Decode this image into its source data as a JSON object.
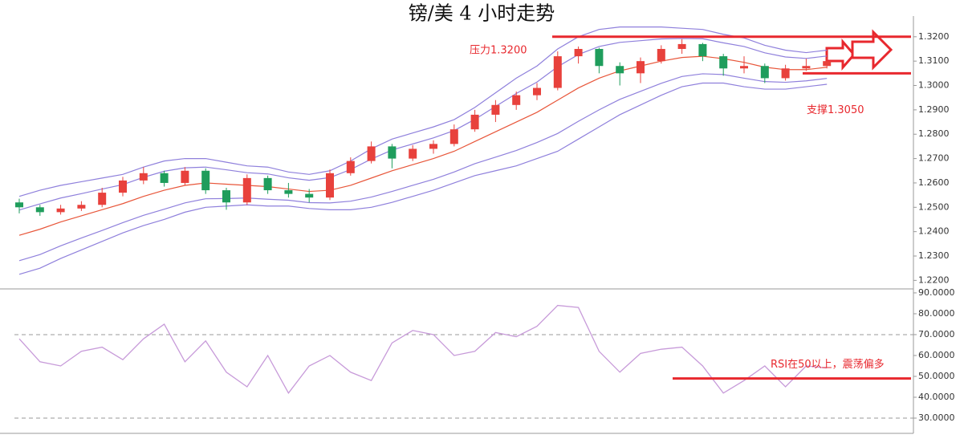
{
  "chart_data": [
    {
      "type": "candlestick",
      "title": "镑/美 4 小时走势",
      "ylim": [
        1.2165,
        1.3285
      ],
      "yticks": [
        {
          "value": 1.22,
          "label": "1.2200"
        },
        {
          "value": 1.23,
          "label": "1.2300"
        },
        {
          "value": 1.24,
          "label": "1.2400"
        },
        {
          "value": 1.25,
          "label": "1.2500"
        },
        {
          "value": 1.26,
          "label": "1.2600"
        },
        {
          "value": 1.27,
          "label": "1.2700"
        },
        {
          "value": 1.28,
          "label": "1.2800"
        },
        {
          "value": 1.29,
          "label": "1.2900"
        },
        {
          "value": 1.3,
          "label": "1.3000"
        },
        {
          "value": 1.31,
          "label": "1.3100"
        },
        {
          "value": 1.32,
          "label": "1.3200"
        }
      ],
      "up_color": "#e8413c",
      "down_color": "#1f9d5c",
      "ohlc": [
        [
          1.252,
          1.2535,
          1.2475,
          1.25
        ],
        [
          1.25,
          1.251,
          1.2465,
          1.248
        ],
        [
          1.248,
          1.251,
          1.247,
          1.2495
        ],
        [
          1.2495,
          1.2525,
          1.2485,
          1.251
        ],
        [
          1.251,
          1.258,
          1.25,
          1.256
        ],
        [
          1.256,
          1.2625,
          1.2545,
          1.261
        ],
        [
          1.261,
          1.2665,
          1.2595,
          1.264
        ],
        [
          1.264,
          1.265,
          1.2585,
          1.26
        ],
        [
          1.26,
          1.2665,
          1.259,
          1.265
        ],
        [
          1.265,
          1.266,
          1.2555,
          1.257
        ],
        [
          1.257,
          1.258,
          1.249,
          1.252
        ],
        [
          1.252,
          1.2635,
          1.251,
          1.262
        ],
        [
          1.262,
          1.263,
          1.2555,
          1.257
        ],
        [
          1.257,
          1.26,
          1.254,
          1.2555
        ],
        [
          1.2555,
          1.2575,
          1.252,
          1.254
        ],
        [
          1.254,
          1.2655,
          1.253,
          1.264
        ],
        [
          1.264,
          1.2705,
          1.263,
          1.269
        ],
        [
          1.269,
          1.277,
          1.268,
          1.275
        ],
        [
          1.275,
          1.276,
          1.266,
          1.27
        ],
        [
          1.27,
          1.2755,
          1.269,
          1.274
        ],
        [
          1.274,
          1.2775,
          1.272,
          1.276
        ],
        [
          1.276,
          1.284,
          1.275,
          1.282
        ],
        [
          1.282,
          1.29,
          1.281,
          1.288
        ],
        [
          1.288,
          1.294,
          1.285,
          1.292
        ],
        [
          1.292,
          1.2975,
          1.29,
          1.296
        ],
        [
          1.296,
          1.301,
          1.294,
          1.299
        ],
        [
          1.299,
          1.314,
          1.298,
          1.312
        ],
        [
          1.312,
          1.316,
          1.309,
          1.315
        ],
        [
          1.315,
          1.3155,
          1.305,
          1.308
        ],
        [
          1.308,
          1.3095,
          1.3,
          1.305
        ],
        [
          1.305,
          1.3115,
          1.301,
          1.31
        ],
        [
          1.31,
          1.3165,
          1.309,
          1.315
        ],
        [
          1.315,
          1.319,
          1.313,
          1.317
        ],
        [
          1.317,
          1.3175,
          1.31,
          1.312
        ],
        [
          1.312,
          1.313,
          1.304,
          1.307
        ],
        [
          1.307,
          1.312,
          1.305,
          1.308
        ],
        [
          1.308,
          1.309,
          1.301,
          1.303
        ],
        [
          1.303,
          1.3085,
          1.302,
          1.307
        ],
        [
          1.307,
          1.311,
          1.306,
          1.308
        ],
        [
          1.308,
          1.3115,
          1.307,
          1.31
        ]
      ],
      "lines": [
        {
          "color": "#8f80dc",
          "values": [
            1.2545,
            1.257,
            1.259,
            1.2605,
            1.262,
            1.2635,
            1.2665,
            1.269,
            1.27,
            1.27,
            1.2685,
            1.267,
            1.2665,
            1.2645,
            1.2635,
            1.265,
            1.269,
            1.274,
            1.278,
            1.2805,
            1.283,
            1.286,
            1.291,
            1.297,
            1.303,
            1.308,
            1.315,
            1.32,
            1.323,
            1.324,
            1.324,
            1.324,
            1.3235,
            1.323,
            1.321,
            1.3195,
            1.3165,
            1.3145,
            1.3135,
            1.3145
          ]
        },
        {
          "color": "#8f80dc",
          "values": [
            1.2489,
            1.2514,
            1.2538,
            1.2556,
            1.2575,
            1.2593,
            1.2623,
            1.2648,
            1.2662,
            1.2665,
            1.2654,
            1.2642,
            1.2637,
            1.2621,
            1.2611,
            1.2622,
            1.2655,
            1.2698,
            1.2735,
            1.276,
            1.2785,
            1.2815,
            1.2861,
            1.2914,
            1.2967,
            1.3014,
            1.3077,
            1.3127,
            1.316,
            1.3177,
            1.3184,
            1.3191,
            1.3193,
            1.3192,
            1.3175,
            1.316,
            1.3134,
            1.3117,
            1.3111,
            1.3121
          ]
        },
        {
          "color": "#e8563a",
          "values": [
            1.2385,
            1.241,
            1.244,
            1.2465,
            1.249,
            1.2515,
            1.2545,
            1.257,
            1.259,
            1.26,
            1.2595,
            1.259,
            1.2585,
            1.2575,
            1.2565,
            1.257,
            1.259,
            1.262,
            1.265,
            1.2675,
            1.27,
            1.273,
            1.277,
            1.281,
            1.285,
            1.289,
            1.294,
            1.299,
            1.303,
            1.306,
            1.308,
            1.31,
            1.3115,
            1.312,
            1.311,
            1.3095,
            1.3075,
            1.3065,
            1.3065,
            1.3075
          ]
        },
        {
          "color": "#8f80dc",
          "values": [
            1.2281,
            1.2306,
            1.2342,
            1.2374,
            1.2405,
            1.2437,
            1.2467,
            1.2492,
            1.2518,
            1.2535,
            1.2536,
            1.2538,
            1.2533,
            1.2529,
            1.2519,
            1.2518,
            1.2525,
            1.2542,
            1.2565,
            1.259,
            1.2615,
            1.2645,
            1.2679,
            1.2706,
            1.2733,
            1.2766,
            1.2803,
            1.2853,
            1.29,
            1.2943,
            1.2976,
            1.3009,
            1.3037,
            1.3048,
            1.3045,
            1.303,
            1.3016,
            1.3013,
            1.3019,
            1.3029
          ]
        },
        {
          "color": "#8f80dc",
          "values": [
            1.2225,
            1.225,
            1.229,
            1.2325,
            1.236,
            1.2395,
            1.2425,
            1.245,
            1.248,
            1.25,
            1.2505,
            1.251,
            1.2505,
            1.2505,
            1.2495,
            1.249,
            1.249,
            1.25,
            1.252,
            1.2545,
            1.257,
            1.26,
            1.263,
            1.265,
            1.267,
            1.27,
            1.273,
            1.278,
            1.283,
            1.288,
            1.292,
            1.296,
            1.2995,
            1.301,
            1.301,
            1.2995,
            1.2985,
            1.2985,
            1.2995,
            1.3005
          ]
        }
      ],
      "annotations": [
        {
          "text": "压力1.3200",
          "value": 1.32,
          "color": "#e8282e"
        },
        {
          "text": "支撑1.3050",
          "value": 1.305,
          "color": "#e8282e"
        }
      ]
    },
    {
      "type": "line",
      "color": "#c79ad9",
      "ylim": [
        22.7,
        91.9
      ],
      "yticks": [
        {
          "value": 30,
          "label": "30.0000"
        },
        {
          "value": 40,
          "label": "40.0000"
        },
        {
          "value": 50,
          "label": "50.0000"
        },
        {
          "value": 60,
          "label": "60.0000"
        },
        {
          "value": 70,
          "label": "70.0000"
        },
        {
          "value": 80,
          "label": "80.0000"
        },
        {
          "value": 90,
          "label": "90.0000"
        }
      ],
      "dashed_levels": [
        30,
        70
      ],
      "values": [
        68,
        57,
        55,
        62,
        64,
        58,
        68,
        75,
        57,
        67,
        52,
        45,
        60,
        42,
        55,
        60,
        52,
        48,
        66,
        72,
        70,
        60,
        62,
        71,
        69,
        74,
        84,
        83,
        62,
        52,
        61,
        63,
        64,
        55,
        42,
        48,
        55,
        45,
        55,
        54
      ],
      "annotations": [
        {
          "text": "RSI在50以上，震荡偏多",
          "value": 49,
          "color": "#e8282e"
        }
      ]
    }
  ]
}
